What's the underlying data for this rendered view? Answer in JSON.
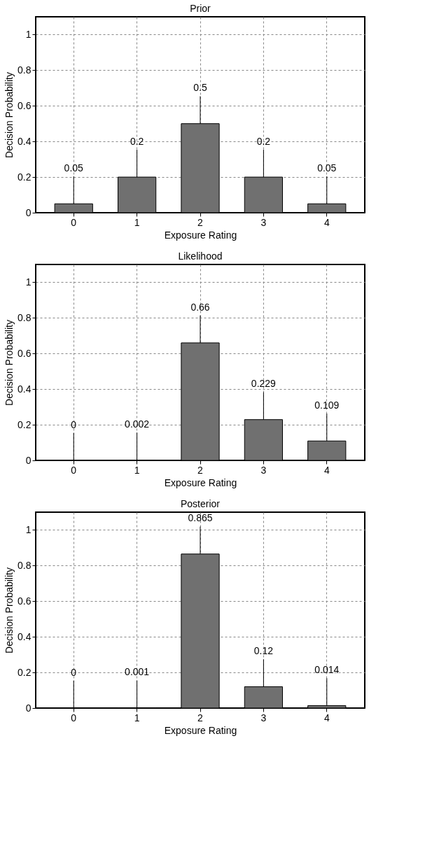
{
  "chart_data": [
    {
      "type": "bar",
      "title": "Prior",
      "xlabel": "Exposure Rating",
      "ylabel": "Decision Probability",
      "categories": [
        "0",
        "1",
        "2",
        "3",
        "4"
      ],
      "values": [
        0.05,
        0.2,
        0.5,
        0.2,
        0.05
      ],
      "color": "#707070",
      "ylim": [
        0,
        1.1
      ],
      "yticks": [
        0,
        0.2,
        0.4,
        0.6,
        0.8,
        1
      ],
      "grid": true,
      "data_labels": true
    },
    {
      "type": "bar",
      "title": "Likelihood",
      "xlabel": "Exposure Rating",
      "ylabel": "Decision Probability",
      "categories": [
        "0",
        "1",
        "2",
        "3",
        "4"
      ],
      "values": [
        0,
        0.002,
        0.66,
        0.229,
        0.109
      ],
      "color": "#707070",
      "ylim": [
        0,
        1.1
      ],
      "yticks": [
        0,
        0.2,
        0.4,
        0.6,
        0.8,
        1
      ],
      "grid": true,
      "data_labels": true
    },
    {
      "type": "bar",
      "title": "Posterior",
      "xlabel": "Exposure Rating",
      "ylabel": "Decision Probability",
      "categories": [
        "0",
        "1",
        "2",
        "3",
        "4"
      ],
      "values": [
        0,
        0.001,
        0.865,
        0.12,
        0.014
      ],
      "color": "#707070",
      "ylim": [
        0,
        1.1
      ],
      "yticks": [
        0,
        0.2,
        0.4,
        0.6,
        0.8,
        1
      ],
      "grid": true,
      "data_labels": true
    }
  ]
}
